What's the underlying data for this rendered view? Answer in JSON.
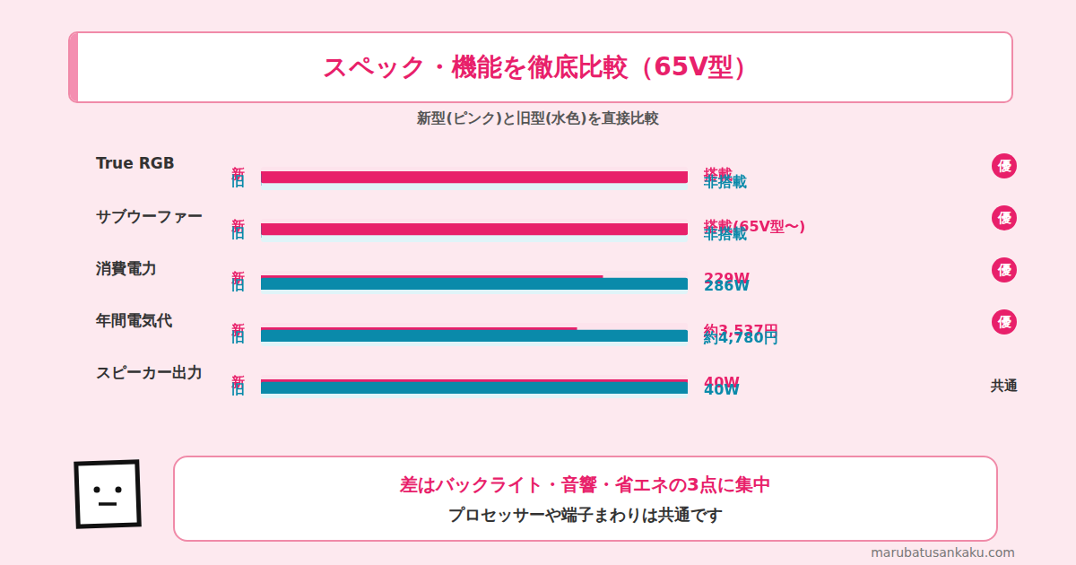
{
  "header": {
    "title": "スペック・機能を徹底比較（65V型）",
    "subtitle": "新型(ピンク)と旧型(水色)を直接比較"
  },
  "chart_data": [
    {
      "type": "bar",
      "orientation": "horizontal",
      "title": "True RGB",
      "categories": [
        "新",
        "旧"
      ],
      "values": [
        1,
        0
      ],
      "value_labels": [
        "搭載",
        "非搭載"
      ],
      "colors": [
        "#e8206a",
        "#0a8aaa"
      ],
      "xlim": [
        0,
        1
      ],
      "data_labels": true,
      "tick_labels": "y",
      "grid": false,
      "annotation": "優"
    },
    {
      "type": "bar",
      "orientation": "horizontal",
      "title": "サブウーファー",
      "categories": [
        "新",
        "旧"
      ],
      "values": [
        1,
        0
      ],
      "value_labels": [
        "搭載(65V型〜)",
        "非搭載"
      ],
      "colors": [
        "#e8206a",
        "#0a8aaa"
      ],
      "xlim": [
        0,
        1
      ],
      "data_labels": true,
      "tick_labels": "y",
      "grid": false,
      "annotation": "優"
    },
    {
      "type": "bar",
      "orientation": "horizontal",
      "title": "消費電力",
      "categories": [
        "新",
        "旧"
      ],
      "values": [
        229,
        286
      ],
      "value_labels": [
        "229W",
        "286W"
      ],
      "colors": [
        "#e8206a",
        "#0a8aaa"
      ],
      "xlim": [
        0,
        286
      ],
      "data_labels": true,
      "tick_labels": "y",
      "grid": false,
      "annotation": "優"
    },
    {
      "type": "bar",
      "orientation": "horizontal",
      "title": "年間電気代",
      "categories": [
        "新",
        "旧"
      ],
      "values": [
        3537,
        4780
      ],
      "value_labels": [
        "約3,537円",
        "約4,780円"
      ],
      "colors": [
        "#e8206a",
        "#0a8aaa"
      ],
      "xlim": [
        0,
        4780
      ],
      "data_labels": true,
      "tick_labels": "y",
      "grid": false,
      "annotation": "優"
    },
    {
      "type": "bar",
      "orientation": "horizontal",
      "title": "スピーカー出力",
      "categories": [
        "新",
        "旧"
      ],
      "values": [
        40,
        40
      ],
      "value_labels": [
        "40W",
        "40W"
      ],
      "colors": [
        "#e8206a",
        "#0a8aaa"
      ],
      "xlim": [
        0,
        40
      ],
      "data_labels": true,
      "tick_labels": "y",
      "grid": false,
      "annotation": "共通"
    }
  ],
  "footer": {
    "headline": "差はバックライト・音響・省エネの3点に集中",
    "text": "プロセッサーや端子まわりは共通です"
  },
  "source": "marubatusankaku.com"
}
